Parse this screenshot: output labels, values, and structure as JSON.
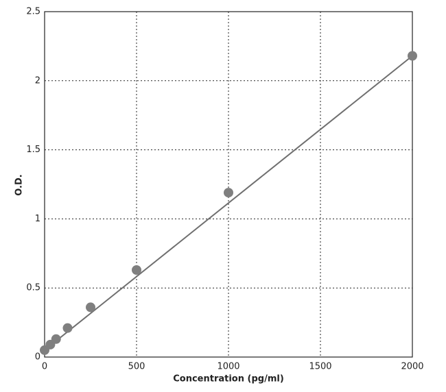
{
  "chart_data": {
    "type": "scatter",
    "x_label": "Concentration (pg/ml)",
    "y_label": "O.D.",
    "series": [
      {
        "x": [
          0,
          31.25,
          62.5,
          125,
          250,
          500,
          1000,
          2000
        ],
        "values": [
          0.05,
          0.09,
          0.13,
          0.21,
          0.36,
          0.63,
          1.19,
          2.18
        ],
        "color": "#7f7f7f"
      }
    ],
    "fit": {
      "x": [
        0,
        2000
      ],
      "values": [
        0.05,
        2.18
      ],
      "color": "#6f6f6f"
    },
    "xlim": [
      0,
      2000
    ],
    "xticks": [
      0,
      500,
      1000,
      1500,
      2000
    ],
    "ylim": [
      0,
      2.5
    ],
    "yticks": [
      0,
      0.5,
      1,
      1.5,
      2,
      2.5
    ],
    "grid": true
  }
}
